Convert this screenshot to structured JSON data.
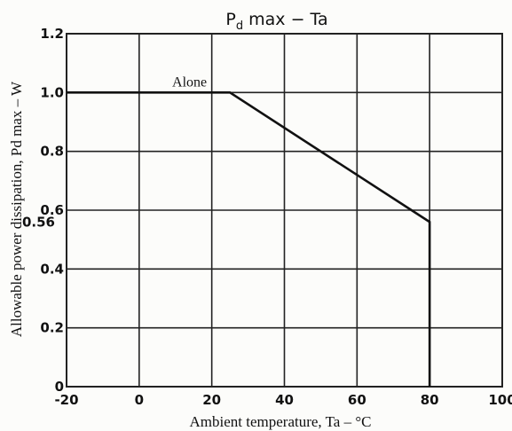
{
  "chart_data": {
    "type": "line",
    "title": "Pd max − Ta",
    "title_parts": {
      "main": "P",
      "sub": "d",
      "rest": " max − Ta"
    },
    "xlabel": "Ambient temperature, Ta – °C",
    "ylabel": "Allowable power dissipation, Pd max – W",
    "xlim": [
      -20,
      100
    ],
    "ylim": [
      0,
      1.2
    ],
    "x_ticks": [
      -20,
      0,
      20,
      40,
      60,
      80,
      100
    ],
    "x_tick_labels": [
      "-20",
      "0",
      "20",
      "40",
      "60",
      "80",
      "100"
    ],
    "y_ticks": [
      0,
      0.2,
      0.4,
      0.6,
      0.8,
      1.0,
      1.2
    ],
    "y_tick_labels": [
      "0",
      "0.2",
      "0.4",
      "0.6",
      "0.8",
      "1.0",
      "1.2"
    ],
    "extra_y_tick": {
      "value": 0.56,
      "label": "0.56"
    },
    "grid": true,
    "series": [
      {
        "name": "Alone",
        "x": [
          -20,
          25,
          80,
          80
        ],
        "y": [
          1.0,
          1.0,
          0.56,
          0
        ]
      }
    ],
    "annotations": [
      {
        "text": "Alone",
        "x": 25,
        "y": 1.0
      }
    ]
  }
}
